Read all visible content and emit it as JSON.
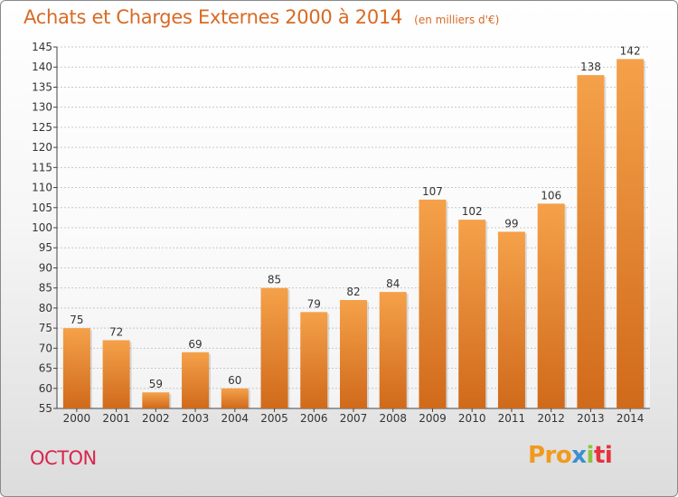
{
  "title": "Achats et Charges Externes 2000 à 2014",
  "unit": "(en milliers d'€)",
  "commune": "OCTON",
  "logo": {
    "p1": "Pro",
    "p2": "x",
    "p3": "i",
    "p4": "ti"
  },
  "colors": {
    "bar_light": "#f5a14a",
    "bar_dark": "#d06a1b",
    "title": "#d86a24",
    "commune": "#d8254e"
  },
  "chart_data": {
    "type": "bar",
    "categories": [
      "2000",
      "2001",
      "2002",
      "2003",
      "2004",
      "2005",
      "2006",
      "2007",
      "2008",
      "2009",
      "2010",
      "2011",
      "2012",
      "2013",
      "2014"
    ],
    "values": [
      75,
      72,
      59,
      69,
      60,
      85,
      79,
      82,
      84,
      107,
      102,
      99,
      106,
      138,
      142
    ],
    "ylim": [
      55,
      145
    ],
    "yticks": [
      55,
      60,
      65,
      70,
      75,
      80,
      85,
      90,
      95,
      100,
      105,
      110,
      115,
      120,
      125,
      130,
      135,
      140,
      145
    ],
    "grid": true,
    "legend": "none"
  }
}
